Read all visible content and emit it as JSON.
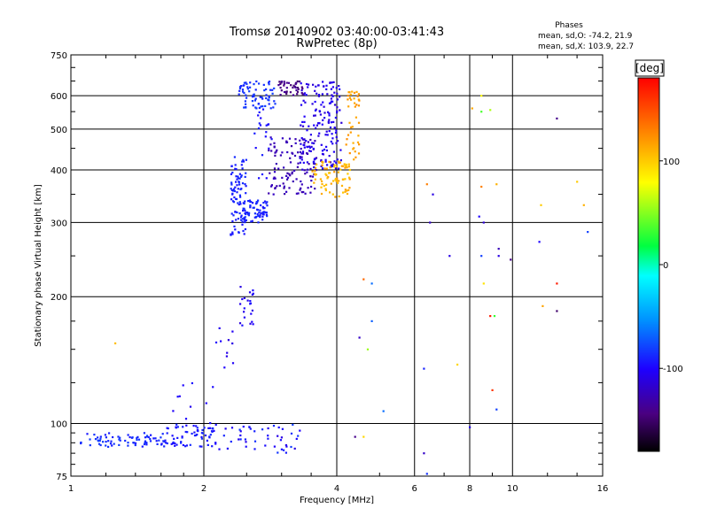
{
  "chart_data": {
    "type": "scatter",
    "title": "Tromsø 20140902 03:40:00-03:41:43",
    "subtitle": "RwPretec (8p)",
    "xlabel": "Frequency [MHz]",
    "ylabel": "Stationary phase Virtual Height [km]",
    "x_scale": "log",
    "y_scale": "log",
    "xlim": [
      1,
      16
    ],
    "ylim": [
      75,
      750
    ],
    "x_ticks": [
      1,
      2,
      4,
      6,
      8,
      10,
      16
    ],
    "x_tick_labels": [
      "1",
      "2",
      "4",
      "6",
      "8",
      "10",
      "16"
    ],
    "y_ticks": [
      75,
      100,
      200,
      300,
      400,
      500,
      600,
      750
    ],
    "y_tick_labels": [
      "75",
      "100",
      "200",
      "300",
      "400",
      "500",
      "600",
      "750"
    ],
    "grid": true,
    "stats": {
      "heading": "Phases",
      "line1": "mean, sd,O: -74.2, 21.9",
      "line2": "mean, sd,X: 103.9, 22.7"
    },
    "colorbar": {
      "label": "[deg]",
      "range": [
        -180,
        180
      ],
      "ticks": [
        100,
        0,
        -100
      ],
      "tick_labels": [
        "100",
        "0",
        "-100"
      ]
    },
    "series": [
      {
        "clusters": [
          {
            "x": [
              1.05,
              1.6
            ],
            "y": [
              88,
              95
            ],
            "phase": [
              -95,
              -80
            ],
            "n": 70
          },
          {
            "x": [
              1.6,
              2.1
            ],
            "y": [
              88,
              100
            ],
            "phase": [
              -100,
              -85
            ],
            "n": 70
          },
          {
            "x": [
              2.1,
              3.3
            ],
            "y": [
              85,
              100
            ],
            "phase": [
              -110,
              -80
            ],
            "n": 50
          },
          {
            "x": [
              1.7,
              2.1
            ],
            "y": [
              100,
              125
            ],
            "phase": [
              -110,
              -95
            ],
            "n": 10
          },
          {
            "x": [
              2.1,
              2.35
            ],
            "y": [
              130,
              170
            ],
            "phase": [
              -115,
              -100
            ],
            "n": 10
          },
          {
            "x": [
              2.4,
              2.6
            ],
            "y": [
              170,
              215
            ],
            "phase": [
              -115,
              -95
            ],
            "n": 22
          },
          {
            "x": [
              2.3,
              2.5
            ],
            "y": [
              280,
              430
            ],
            "phase": [
              -95,
              -85
            ],
            "n": 90
          },
          {
            "x": [
              2.45,
              2.8
            ],
            "y": [
              300,
              340
            ],
            "phase": [
              -95,
              -85
            ],
            "n": 70
          },
          {
            "x": [
              2.4,
              2.9
            ],
            "y": [
              560,
              650
            ],
            "phase": [
              -90,
              -80
            ],
            "n": 70
          },
          {
            "x": [
              2.6,
              2.85
            ],
            "y": [
              380,
              560
            ],
            "phase": [
              -100,
              -90
            ],
            "n": 20
          },
          {
            "x": [
              2.8,
              3.6
            ],
            "y": [
              350,
              480
            ],
            "phase": [
              -130,
              -120
            ],
            "n": 110
          },
          {
            "x": [
              3.3,
              4.1
            ],
            "y": [
              400,
              650
            ],
            "phase": [
              -115,
              -100
            ],
            "n": 170
          },
          {
            "x": [
              2.95,
              3.35
            ],
            "y": [
              600,
              650
            ],
            "phase": [
              -150,
              -135
            ],
            "n": 40
          }
        ]
      },
      {
        "clusters": [
          {
            "x": [
              3.5,
              4.3
            ],
            "y": [
              345,
              420
            ],
            "phase": [
              100,
              120
            ],
            "n": 80
          },
          {
            "x": [
              4.2,
              4.5
            ],
            "y": [
              420,
              620
            ],
            "phase": [
              110,
              125
            ],
            "n": 40
          }
        ]
      }
    ],
    "scattered_points": [
      {
        "x": 1.26,
        "y": 155,
        "phase": 105
      },
      {
        "x": 4.6,
        "y": 220,
        "phase": 140
      },
      {
        "x": 4.8,
        "y": 215,
        "phase": -65
      },
      {
        "x": 4.7,
        "y": 150,
        "phase": 55
      },
      {
        "x": 4.8,
        "y": 175,
        "phase": -70
      },
      {
        "x": 5.1,
        "y": 107,
        "phase": -65
      },
      {
        "x": 4.5,
        "y": 160,
        "phase": -120
      },
      {
        "x": 4.4,
        "y": 93,
        "phase": -140
      },
      {
        "x": 4.6,
        "y": 93,
        "phase": 95
      },
      {
        "x": 6.4,
        "y": 370,
        "phase": 130
      },
      {
        "x": 6.6,
        "y": 350,
        "phase": -110
      },
      {
        "x": 6.5,
        "y": 300,
        "phase": -120
      },
      {
        "x": 6.3,
        "y": 135,
        "phase": -90
      },
      {
        "x": 6.3,
        "y": 85,
        "phase": -120
      },
      {
        "x": 6.4,
        "y": 76,
        "phase": -85
      },
      {
        "x": 7.2,
        "y": 250,
        "phase": -110
      },
      {
        "x": 7.5,
        "y": 138,
        "phase": 95
      },
      {
        "x": 8.0,
        "y": 98,
        "phase": -110
      },
      {
        "x": 8.1,
        "y": 560,
        "phase": 115
      },
      {
        "x": 8.5,
        "y": 550,
        "phase": 35
      },
      {
        "x": 8.9,
        "y": 555,
        "phase": 60
      },
      {
        "x": 8.5,
        "y": 600,
        "phase": 80
      },
      {
        "x": 8.5,
        "y": 365,
        "phase": 130
      },
      {
        "x": 8.4,
        "y": 310,
        "phase": -100
      },
      {
        "x": 8.6,
        "y": 300,
        "phase": -115
      },
      {
        "x": 8.5,
        "y": 250,
        "phase": -80
      },
      {
        "x": 8.6,
        "y": 215,
        "phase": 90
      },
      {
        "x": 8.9,
        "y": 180,
        "phase": 170
      },
      {
        "x": 9.1,
        "y": 180,
        "phase": 30
      },
      {
        "x": 9.0,
        "y": 120,
        "phase": 160
      },
      {
        "x": 9.2,
        "y": 108,
        "phase": -80
      },
      {
        "x": 9.3,
        "y": 260,
        "phase": -125
      },
      {
        "x": 9.3,
        "y": 250,
        "phase": -110
      },
      {
        "x": 9.2,
        "y": 370,
        "phase": 110
      },
      {
        "x": 9.9,
        "y": 245,
        "phase": -140
      },
      {
        "x": 11.6,
        "y": 330,
        "phase": 100
      },
      {
        "x": 11.5,
        "y": 270,
        "phase": -100
      },
      {
        "x": 11.7,
        "y": 190,
        "phase": 115
      },
      {
        "x": 12.6,
        "y": 185,
        "phase": -150
      },
      {
        "x": 12.6,
        "y": 215,
        "phase": 170
      },
      {
        "x": 12.6,
        "y": 530,
        "phase": -140
      },
      {
        "x": 14.0,
        "y": 375,
        "phase": 100
      },
      {
        "x": 14.5,
        "y": 330,
        "phase": 110
      },
      {
        "x": 14.8,
        "y": 285,
        "phase": -80
      }
    ]
  }
}
